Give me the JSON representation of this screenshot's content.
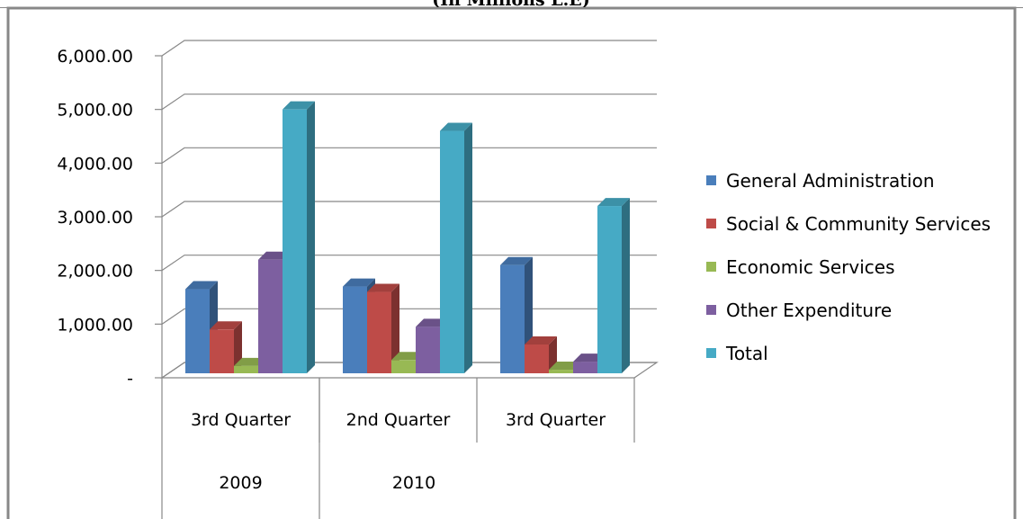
{
  "chart_data": {
    "type": "bar3d",
    "subtitle": "(In Millions L.E)",
    "categories": [
      "3rd Quarter",
      "2nd Quarter",
      "3rd Quarter"
    ],
    "groups": [
      {
        "label": "2009",
        "span": 1
      },
      {
        "label": "2010",
        "span": 2
      }
    ],
    "series": [
      {
        "name": "General Administration",
        "color": "#4a7ebb",
        "values": [
          1650,
          1700,
          2100
        ]
      },
      {
        "name": "Social & Community Services",
        "color": "#be4b48",
        "values": [
          900,
          1600,
          620
        ]
      },
      {
        "name": "Economic Services",
        "color": "#98b954",
        "values": [
          220,
          330,
          150
        ]
      },
      {
        "name": "Other Expenditure",
        "color": "#7d5fa0",
        "values": [
          2200,
          950,
          300
        ]
      },
      {
        "name": "Total",
        "color": "#46aac5",
        "values": [
          5000,
          4600,
          3200
        ]
      }
    ],
    "ylim": [
      0,
      6000
    ],
    "yticks": [
      {
        "value": 0,
        "label": "-"
      },
      {
        "value": 1000,
        "label": "1,000.00"
      },
      {
        "value": 2000,
        "label": "2,000.00"
      },
      {
        "value": 3000,
        "label": "3,000.00"
      },
      {
        "value": 4000,
        "label": "4,000.00"
      },
      {
        "value": 5000,
        "label": "5,000.00"
      },
      {
        "value": 6000,
        "label": "6,000.00"
      }
    ],
    "grid": true,
    "legend": "right"
  }
}
